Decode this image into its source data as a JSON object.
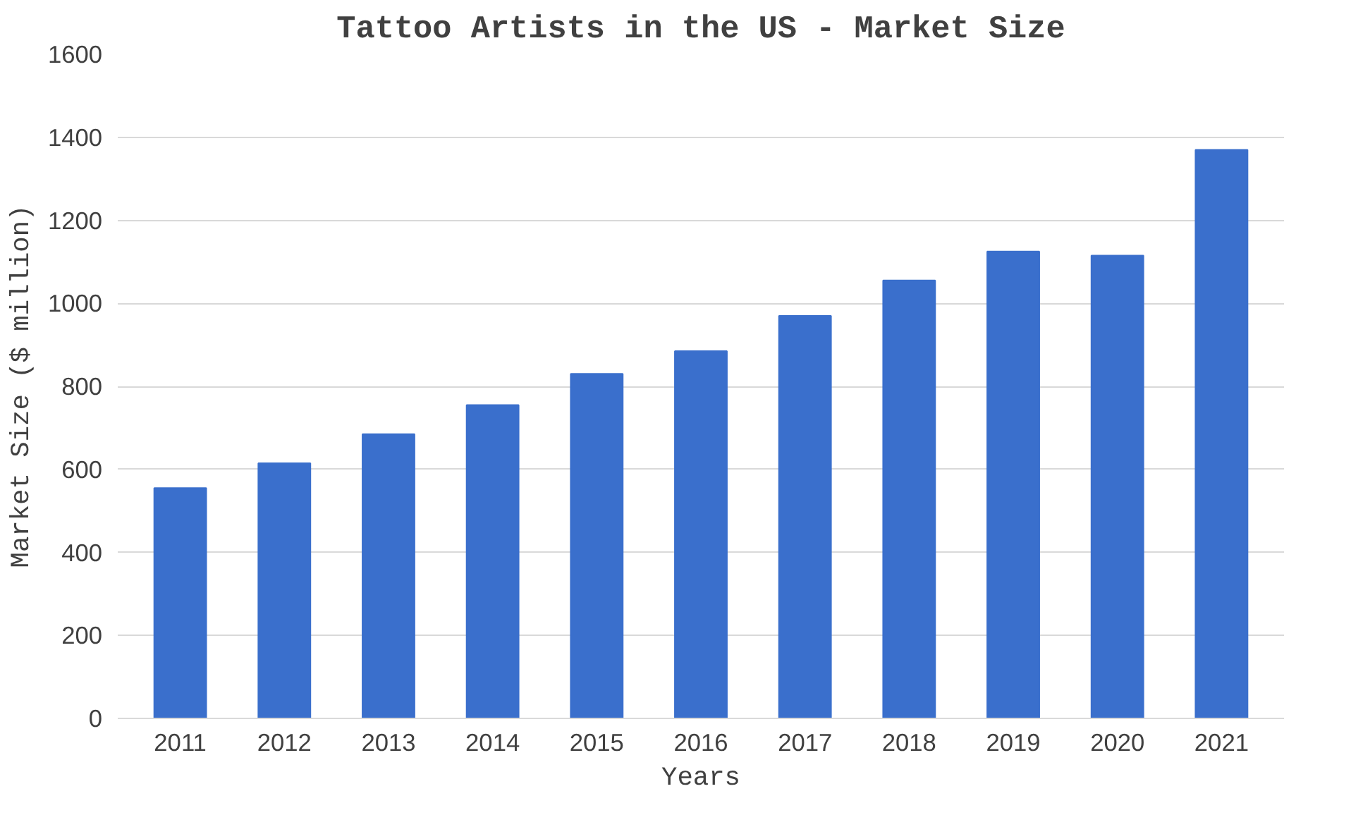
{
  "chart_data": {
    "type": "bar",
    "title": "Tattoo Artists in the US - Market Size",
    "xlabel": "Years",
    "ylabel": "Market Size ($ million)",
    "categories": [
      "2011",
      "2012",
      "2013",
      "2014",
      "2015",
      "2016",
      "2017",
      "2018",
      "2019",
      "2020",
      "2021"
    ],
    "values": [
      555,
      615,
      685,
      755,
      830,
      885,
      970,
      1055,
      1125,
      1115,
      1370
    ],
    "color": "#3a6fcc",
    "ylim": [
      0,
      1600
    ],
    "yticks": [
      0,
      200,
      400,
      600,
      800,
      1000,
      1200,
      1400,
      1600
    ],
    "grid": "y"
  }
}
